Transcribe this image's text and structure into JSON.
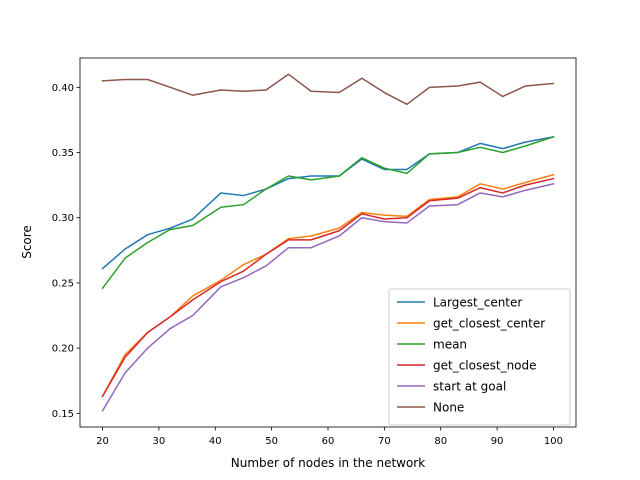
{
  "chart_data": {
    "type": "line",
    "title": "",
    "xlabel": "Number of nodes in the network",
    "ylabel": "Score",
    "xlim": [
      16.0,
      104.0
    ],
    "ylim": [
      0.1395,
      0.4225
    ],
    "xticks": [
      20,
      30,
      40,
      50,
      60,
      70,
      80,
      90,
      100
    ],
    "yticks": [
      0.15,
      0.2,
      0.25,
      0.3,
      0.35,
      0.4
    ],
    "grid": false,
    "legend_position": "lower right",
    "x": [
      20,
      24,
      28,
      32,
      36,
      41,
      45,
      49,
      53,
      57,
      62,
      66,
      70,
      74,
      78,
      83,
      87,
      91,
      95,
      100
    ],
    "series": [
      {
        "name": "Largest_center",
        "color": "#1f77b4",
        "values": [
          0.261,
          0.276,
          0.287,
          0.292,
          0.299,
          0.319,
          0.317,
          0.322,
          0.33,
          0.332,
          0.332,
          0.345,
          0.337,
          0.337,
          0.349,
          0.35,
          0.357,
          0.353,
          0.358,
          0.362
        ]
      },
      {
        "name": "get_closest_center",
        "color": "#ff7f0e",
        "values": [
          0.163,
          0.195,
          0.212,
          0.224,
          0.24,
          0.252,
          0.264,
          0.272,
          0.284,
          0.286,
          0.292,
          0.304,
          0.302,
          0.301,
          0.314,
          0.316,
          0.326,
          0.322,
          0.327,
          0.333
        ]
      },
      {
        "name": "mean",
        "color": "#2ca02c",
        "values": [
          0.246,
          0.269,
          0.281,
          0.291,
          0.294,
          0.308,
          0.31,
          0.322,
          0.332,
          0.329,
          0.332,
          0.346,
          0.338,
          0.334,
          0.349,
          0.35,
          0.354,
          0.35,
          0.355,
          0.362
        ]
      },
      {
        "name": "get_closest_node",
        "color": "#d62728",
        "values": [
          0.163,
          0.193,
          0.212,
          0.224,
          0.237,
          0.251,
          0.259,
          0.272,
          0.283,
          0.283,
          0.29,
          0.303,
          0.299,
          0.3,
          0.313,
          0.315,
          0.323,
          0.319,
          0.325,
          0.33
        ]
      },
      {
        "name": "start at goal",
        "color": "#9467bd",
        "values": [
          0.152,
          0.181,
          0.2,
          0.215,
          0.225,
          0.247,
          0.254,
          0.263,
          0.277,
          0.277,
          0.286,
          0.3,
          0.297,
          0.296,
          0.309,
          0.31,
          0.319,
          0.316,
          0.321,
          0.326
        ]
      },
      {
        "name": "None",
        "color": "#8c564b",
        "values": [
          0.405,
          0.406,
          0.406,
          0.4,
          0.394,
          0.398,
          0.397,
          0.398,
          0.41,
          0.397,
          0.396,
          0.407,
          0.396,
          0.387,
          0.4,
          0.401,
          0.404,
          0.393,
          0.401,
          0.403
        ]
      }
    ]
  }
}
